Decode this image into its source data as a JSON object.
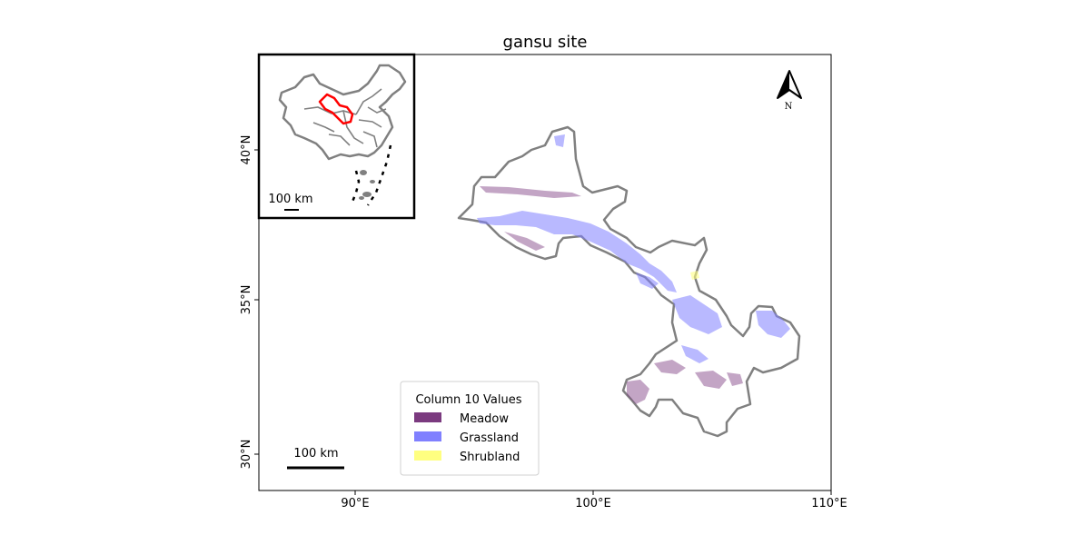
{
  "title": "gansu site",
  "x_ticks": [
    "90°E",
    "100°E",
    "110°E"
  ],
  "y_ticks": [
    "30°N",
    "35°N",
    "40°N"
  ],
  "north_label": "N",
  "scale_bar_label": "100 km",
  "inset_scale_bar_label": "100 km",
  "legend": {
    "title": "Column 10 Values",
    "items": [
      {
        "label": "Meadow",
        "color": "#7b3a7f"
      },
      {
        "label": "Grassland",
        "color": "#8080ff"
      },
      {
        "label": "Shrubland",
        "color": "#ffff80"
      }
    ]
  },
  "colors": {
    "boundary": "#808080",
    "highlight": "#ff0000",
    "frame": "#000000"
  }
}
